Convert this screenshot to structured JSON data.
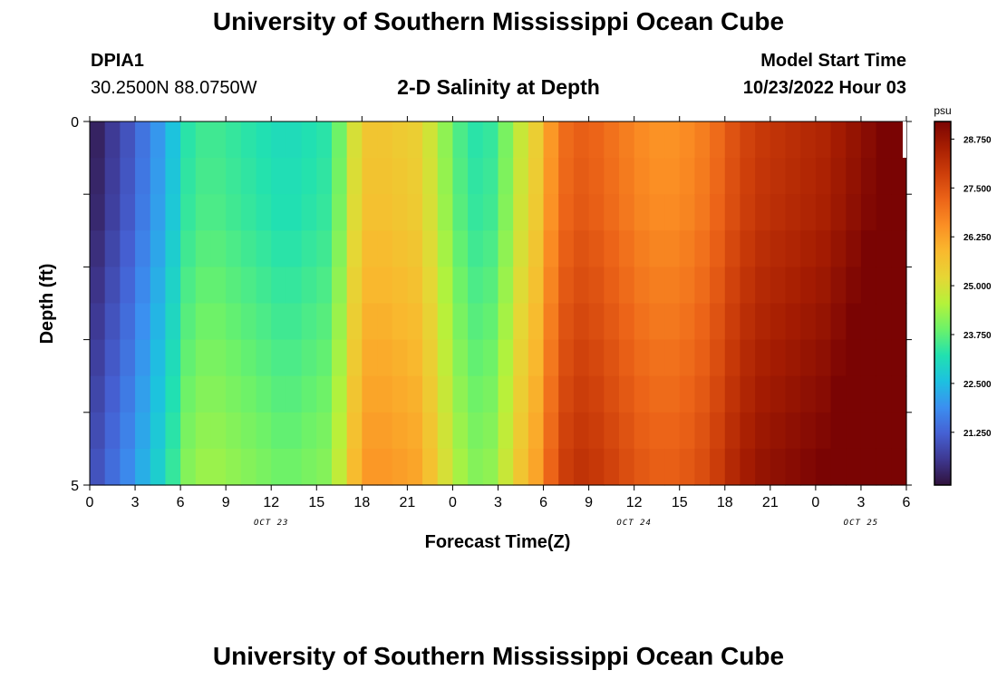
{
  "header": {
    "title": "University of Southern Mississippi Ocean Cube",
    "station_id": "DPIA1",
    "station_coords": "30.2500N  88.0750W",
    "product": "2-D Salinity at Depth",
    "start_label": "Model Start Time",
    "start_value": "10/23/2022 Hour 03"
  },
  "footer": {
    "title": "University of Southern Mississippi Ocean Cube"
  },
  "chart_data": {
    "type": "heatmap",
    "title": "2-D Salinity at Depth",
    "xlabel": "Forecast Time(Z)",
    "ylabel": "Depth (ft)",
    "x_ticks": [
      "0",
      "3",
      "6",
      "9",
      "12",
      "15",
      "18",
      "21",
      "0",
      "3",
      "6",
      "9",
      "12",
      "15",
      "18",
      "21",
      "0",
      "3",
      "6"
    ],
    "day_labels": [
      "OCT 23",
      "OCT 24",
      "OCT 25"
    ],
    "y_ticks": [
      "0",
      "5"
    ],
    "ylim": [
      0,
      5
    ],
    "x_range_hours": [
      0,
      54
    ],
    "colorbar": {
      "unit": "psu",
      "range": [
        19.9,
        29.2
      ],
      "ticks": [
        "21.250",
        "22.500",
        "23.750",
        "25.000",
        "26.250",
        "27.500",
        "28.750"
      ],
      "colors": [
        "#30123b",
        "#3e3891",
        "#4561d4",
        "#3b8ff0",
        "#1dc1e0",
        "#21e1b0",
        "#6cf269",
        "#b5f23a",
        "#e6d635",
        "#f9b92e",
        "#fb8f24",
        "#ec6418",
        "#cd3e0a",
        "#a71e02",
        "#7a0403"
      ]
    },
    "depth_levels_ft": [
      0.25,
      0.75,
      1.25,
      1.75,
      2.25,
      2.75,
      3.25,
      3.75,
      4.25,
      4.75
    ],
    "hourly_surface_salinity": [
      20.2,
      20.6,
      21.0,
      21.5,
      22.0,
      22.6,
      23.3,
      23.5,
      23.5,
      23.4,
      23.3,
      23.2,
      23.1,
      23.1,
      23.2,
      23.3,
      23.9,
      25.0,
      25.6,
      25.6,
      25.5,
      25.4,
      24.9,
      24.2,
      23.6,
      23.3,
      23.4,
      24.0,
      24.8,
      25.4,
      26.4,
      27.1,
      27.3,
      27.2,
      27.0,
      26.8,
      26.6,
      26.5,
      26.5,
      26.6,
      26.8,
      27.1,
      27.5,
      27.8,
      28.0,
      28.1,
      28.2,
      28.3,
      28.4,
      28.6,
      28.8,
      29.0,
      29.2,
      29.2
    ],
    "depth_salinity_offsets": [
      0.0,
      0.05,
      0.1,
      0.2,
      0.3,
      0.4,
      0.5,
      0.6,
      0.7,
      0.8
    ]
  }
}
